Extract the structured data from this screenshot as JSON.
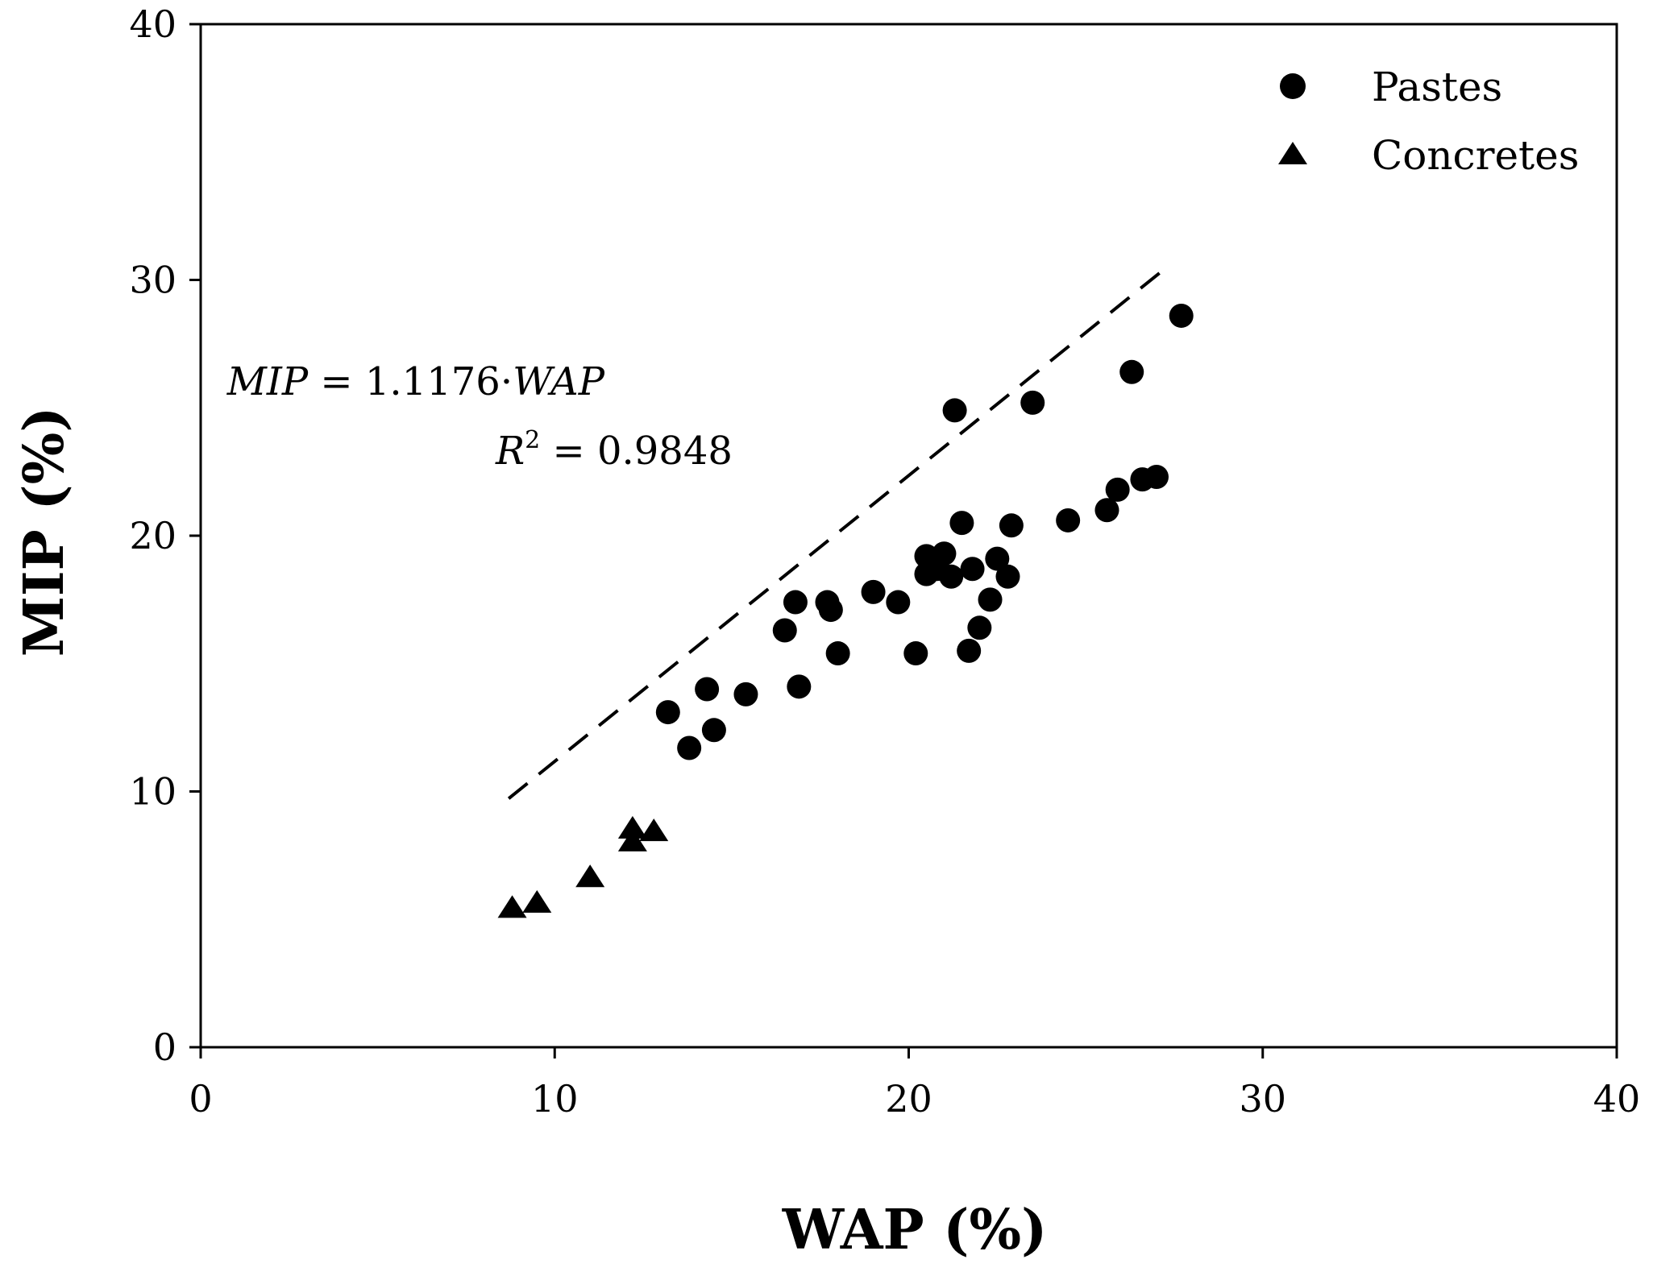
{
  "chart_data": {
    "type": "scatter",
    "title": "",
    "xlabel": "WAP (%)",
    "ylabel": "MIP (%)",
    "xlim": [
      0,
      40
    ],
    "ylim": [
      0,
      40
    ],
    "xticks": [
      "0",
      "10",
      "20",
      "30",
      "40"
    ],
    "yticks": [
      "0",
      "10",
      "20",
      "30",
      "40"
    ],
    "grid": false,
    "legend_position": "top-right",
    "series": [
      {
        "name": "Pastes",
        "marker": "circle",
        "color": "#000000",
        "points": [
          [
            13.2,
            13.1
          ],
          [
            13.8,
            11.7
          ],
          [
            14.3,
            14.0
          ],
          [
            14.5,
            12.4
          ],
          [
            15.4,
            13.8
          ],
          [
            16.5,
            16.3
          ],
          [
            16.8,
            17.4
          ],
          [
            16.9,
            14.1
          ],
          [
            17.7,
            17.4
          ],
          [
            17.8,
            17.1
          ],
          [
            18.0,
            15.4
          ],
          [
            19.0,
            17.8
          ],
          [
            19.7,
            17.4
          ],
          [
            20.2,
            15.4
          ],
          [
            20.5,
            19.2
          ],
          [
            20.5,
            18.5
          ],
          [
            20.8,
            18.7
          ],
          [
            21.0,
            19.3
          ],
          [
            21.2,
            18.4
          ],
          [
            21.3,
            24.9
          ],
          [
            21.5,
            20.5
          ],
          [
            21.7,
            15.5
          ],
          [
            21.8,
            18.7
          ],
          [
            22.0,
            16.4
          ],
          [
            22.3,
            17.5
          ],
          [
            22.5,
            19.1
          ],
          [
            22.8,
            18.4
          ],
          [
            22.9,
            20.4
          ],
          [
            23.5,
            25.2
          ],
          [
            24.5,
            20.6
          ],
          [
            25.6,
            21.0
          ],
          [
            25.9,
            21.8
          ],
          [
            26.3,
            26.4
          ],
          [
            26.6,
            22.2
          ],
          [
            27.0,
            22.3
          ],
          [
            27.7,
            28.6
          ]
        ]
      },
      {
        "name": "Concretes",
        "marker": "triangle",
        "color": "#000000",
        "points": [
          [
            8.8,
            5.5
          ],
          [
            9.5,
            5.7
          ],
          [
            11.0,
            6.7
          ],
          [
            12.2,
            8.1
          ],
          [
            12.2,
            8.6
          ],
          [
            12.8,
            8.5
          ]
        ]
      }
    ],
    "fit_line": {
      "style": "dashed",
      "slope": 1.1176,
      "x_range": [
        8.7,
        27.4
      ]
    },
    "annotation": {
      "equation_var": "MIP",
      "equation_rest": " = 1.1176·",
      "equation_var2": "WAP",
      "r_symbol": "R",
      "r_exp": "2",
      "r_value": " = 0.9848"
    }
  }
}
